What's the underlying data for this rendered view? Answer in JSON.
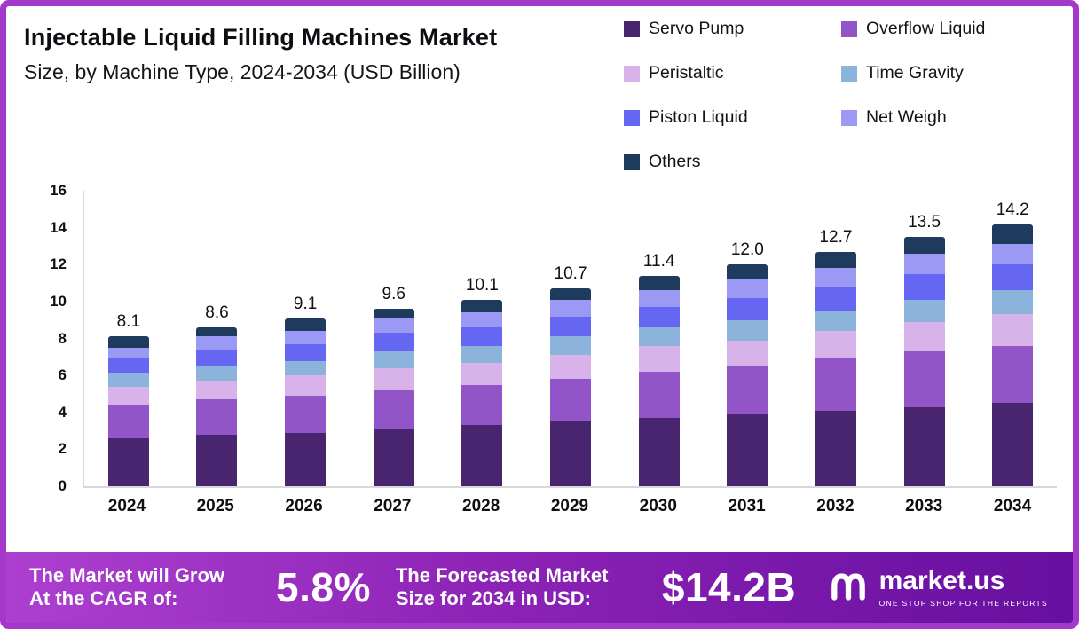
{
  "header": {
    "title": "Injectable Liquid Filling Machines Market",
    "subtitle": "Size, by Machine Type, 2024-2034 (USD Billion)"
  },
  "chart_data": {
    "type": "bar",
    "stacked": true,
    "title": "Injectable Liquid Filling Machines Market Size, by Machine Type, 2024-2034 (USD Billion)",
    "categories": [
      "2024",
      "2025",
      "2026",
      "2027",
      "2028",
      "2029",
      "2030",
      "2031",
      "2032",
      "2033",
      "2034"
    ],
    "totals": [
      8.1,
      8.6,
      9.1,
      9.6,
      10.1,
      10.7,
      11.4,
      12.0,
      12.7,
      13.5,
      14.2
    ],
    "series": [
      {
        "name": "Servo Pump",
        "color": "#49246f",
        "values": [
          2.6,
          2.8,
          2.9,
          3.1,
          3.3,
          3.5,
          3.7,
          3.9,
          4.1,
          4.3,
          4.5
        ]
      },
      {
        "name": "Overflow Liquid",
        "color": "#9155c8",
        "values": [
          1.8,
          1.9,
          2.0,
          2.1,
          2.2,
          2.3,
          2.5,
          2.6,
          2.8,
          3.0,
          3.1
        ]
      },
      {
        "name": "Peristaltic",
        "color": "#d7b3e9",
        "values": [
          1.0,
          1.0,
          1.1,
          1.2,
          1.2,
          1.3,
          1.4,
          1.4,
          1.5,
          1.6,
          1.7
        ]
      },
      {
        "name": "Time Gravity",
        "color": "#8cb3dc",
        "values": [
          0.7,
          0.8,
          0.8,
          0.9,
          0.9,
          1.0,
          1.0,
          1.1,
          1.1,
          1.2,
          1.3
        ]
      },
      {
        "name": "Piston Liquid",
        "color": "#6567f2",
        "values": [
          0.8,
          0.9,
          0.9,
          1.0,
          1.0,
          1.1,
          1.1,
          1.2,
          1.3,
          1.4,
          1.4
        ]
      },
      {
        "name": "Net Weigh",
        "color": "#9b99f4",
        "values": [
          0.6,
          0.7,
          0.7,
          0.8,
          0.8,
          0.9,
          0.9,
          1.0,
          1.0,
          1.1,
          1.1
        ]
      },
      {
        "name": "Others",
        "color": "#1e3a5c",
        "values": [
          0.6,
          0.5,
          0.7,
          0.5,
          0.7,
          0.6,
          0.8,
          0.8,
          0.9,
          0.9,
          1.1
        ]
      }
    ],
    "xlabel": "",
    "ylabel": "",
    "ylim": [
      0,
      16
    ],
    "yticks": [
      0,
      2,
      4,
      6,
      8,
      10,
      12,
      14,
      16
    ],
    "grid": false,
    "legend_position": "top-right",
    "value_labels": "total above each bar, one decimal"
  },
  "banner": {
    "cagr_label": "The Market will Grow\nAt the CAGR of:",
    "cagr_value": "5.8%",
    "forecast_label": "The Forecasted Market\nSize for 2034 in USD:",
    "forecast_value": "$14.2B",
    "brand": "market.us",
    "brand_tagline": "ONE STOP SHOP FOR THE REPORTS"
  },
  "colors": {
    "frame_border": "#a438c8",
    "banner_gradient_start": "#ad3fd0",
    "banner_gradient_end": "#660fa0",
    "axis_line": "#d8d8dc",
    "text": "#0d0d12"
  }
}
